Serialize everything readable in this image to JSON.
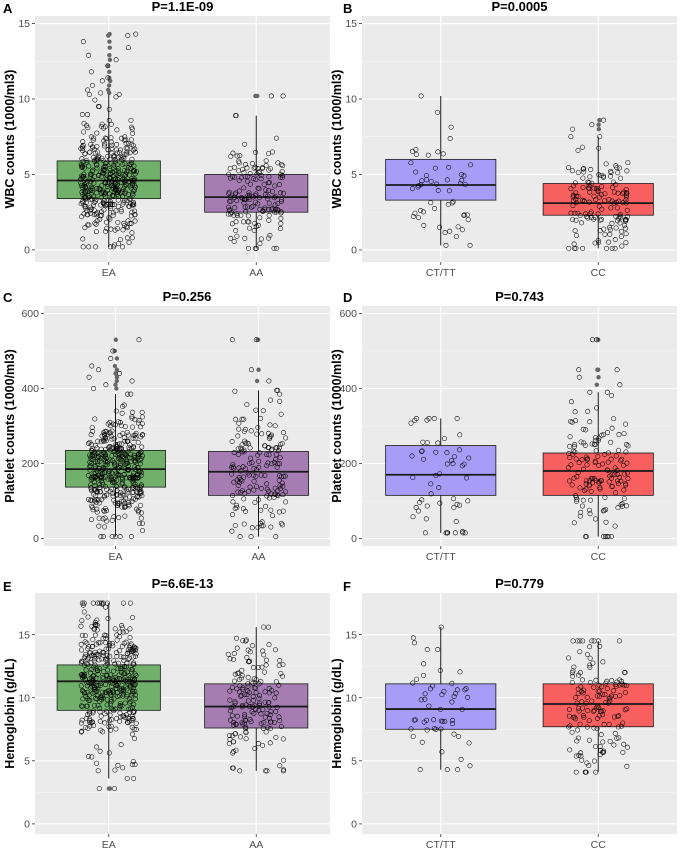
{
  "colors": {
    "panel_bg": "#ebebeb",
    "grid_major": "#ffffff",
    "EA": "#70b06a",
    "AA": "#a57db3",
    "CT/TT": "#a89cf7",
    "CC": "#f86060"
  },
  "chart_data": [
    {
      "id": "A",
      "letter": "A",
      "type": "boxplot",
      "title": "P=1.1E-09",
      "ylabel": "WBC counts (1000/ml3)",
      "ylim": [
        -0.8,
        15.5
      ],
      "yticks": [
        0,
        5,
        10,
        15
      ],
      "ytick_labels": [
        "0",
        "5",
        "10",
        "15"
      ],
      "grid": true,
      "categories": [
        "EA",
        "AA"
      ],
      "boxes": [
        {
          "group": "EA",
          "fill": "#70b06a",
          "min": 0.2,
          "q1": 3.4,
          "median": 4.6,
          "q3": 5.9,
          "max": 10.3,
          "n": 420,
          "outliers": [
            10.4,
            10.6,
            10.9,
            11.2,
            11.4,
            11.8,
            12.2,
            12.6,
            12.9,
            13.4,
            13.8,
            14.2,
            14.3
          ]
        },
        {
          "group": "AA",
          "fill": "#a57db3",
          "min": 0.1,
          "q1": 2.5,
          "median": 3.5,
          "q3": 5.0,
          "max": 8.9,
          "n": 170,
          "outliers": [
            10.2,
            10.2
          ]
        }
      ]
    },
    {
      "id": "B",
      "letter": "B",
      "type": "boxplot",
      "title": "P=0.0005",
      "ylabel": "WBC counts (1000/ml3)",
      "ylim": [
        -0.8,
        15.5
      ],
      "yticks": [
        0,
        5,
        10,
        15
      ],
      "ytick_labels": [
        "0",
        "5",
        "10",
        "15"
      ],
      "grid": true,
      "categories": [
        "CT/TT",
        "CC"
      ],
      "boxes": [
        {
          "group": "CT/TT",
          "fill": "#a89cf7",
          "min": 0.3,
          "q1": 3.3,
          "median": 4.3,
          "q3": 6.0,
          "max": 10.2,
          "n": 55,
          "outliers": []
        },
        {
          "group": "CC",
          "fill": "#f86060",
          "min": 0.1,
          "q1": 2.3,
          "median": 3.1,
          "q3": 4.4,
          "max": 7.5,
          "n": 150,
          "outliers": [
            8.0,
            8.3,
            8.6
          ]
        }
      ]
    },
    {
      "id": "C",
      "letter": "C",
      "type": "boxplot",
      "title": "P=0.256",
      "ylabel": "Platelet counts (1000/ml3)",
      "ylim": [
        -20,
        620
      ],
      "yticks": [
        0,
        200,
        400,
        600
      ],
      "ytick_labels": [
        "0",
        "200",
        "400",
        "600"
      ],
      "grid": true,
      "categories": [
        "EA",
        "AA"
      ],
      "boxes": [
        {
          "group": "EA",
          "fill": "#70b06a",
          "min": 5,
          "q1": 137,
          "median": 185,
          "q3": 235,
          "max": 385,
          "n": 420,
          "outliers": [
            400,
            410,
            420,
            430,
            440,
            450,
            460,
            480,
            500,
            530
          ]
        },
        {
          "group": "AA",
          "fill": "#a57db3",
          "min": 5,
          "q1": 115,
          "median": 178,
          "q3": 232,
          "max": 395,
          "n": 170,
          "outliers": [
            420,
            450,
            530,
            530
          ]
        }
      ]
    },
    {
      "id": "D",
      "letter": "D",
      "type": "boxplot",
      "title": "P=0.743",
      "ylabel": "Platelet counts (1000/ml3)",
      "ylim": [
        -20,
        620
      ],
      "yticks": [
        0,
        200,
        400,
        600
      ],
      "ytick_labels": [
        "0",
        "200",
        "400",
        "600"
      ],
      "grid": true,
      "categories": [
        "CT/TT",
        "CC"
      ],
      "boxes": [
        {
          "group": "CT/TT",
          "fill": "#a89cf7",
          "min": 15,
          "q1": 115,
          "median": 170,
          "q3": 248,
          "max": 320,
          "n": 55,
          "outliers": []
        },
        {
          "group": "CC",
          "fill": "#f86060",
          "min": 5,
          "q1": 115,
          "median": 180,
          "q3": 228,
          "max": 390,
          "n": 150,
          "outliers": [
            410,
            430,
            450,
            450,
            530,
            530
          ]
        }
      ]
    },
    {
      "id": "E",
      "letter": "E",
      "type": "boxplot",
      "title": "P=6.6E-13",
      "ylabel": "Hemoglobin (g/dL)",
      "ylim": [
        -0.8,
        18.3
      ],
      "yticks": [
        0,
        5,
        10,
        15
      ],
      "ytick_labels": [
        "0",
        "5",
        "10",
        "15"
      ],
      "grid": true,
      "categories": [
        "EA",
        "AA"
      ],
      "boxes": [
        {
          "group": "EA",
          "fill": "#70b06a",
          "min": 3.6,
          "q1": 9.0,
          "median": 11.3,
          "q3": 12.6,
          "max": 17.5,
          "n": 420,
          "outliers": [
            2.8,
            2.8
          ]
        },
        {
          "group": "AA",
          "fill": "#a57db3",
          "min": 4.2,
          "q1": 7.6,
          "median": 9.3,
          "q3": 11.1,
          "max": 15.6,
          "n": 170,
          "outliers": []
        }
      ]
    },
    {
      "id": "F",
      "letter": "F",
      "type": "boxplot",
      "title": "P=0.779",
      "ylabel": "Hemoglobin (g/dL)",
      "ylim": [
        -0.8,
        18.3
      ],
      "yticks": [
        0,
        5,
        10,
        15
      ],
      "ytick_labels": [
        "0",
        "5",
        "10",
        "15"
      ],
      "grid": true,
      "categories": [
        "CT/TT",
        "CC"
      ],
      "boxes": [
        {
          "group": "CT/TT",
          "fill": "#a89cf7",
          "min": 4.3,
          "q1": 7.5,
          "median": 9.1,
          "q3": 11.1,
          "max": 15.6,
          "n": 55,
          "outliers": []
        },
        {
          "group": "CC",
          "fill": "#f86060",
          "min": 4.1,
          "q1": 7.7,
          "median": 9.5,
          "q3": 11.1,
          "max": 14.5,
          "n": 150,
          "outliers": []
        }
      ]
    }
  ]
}
